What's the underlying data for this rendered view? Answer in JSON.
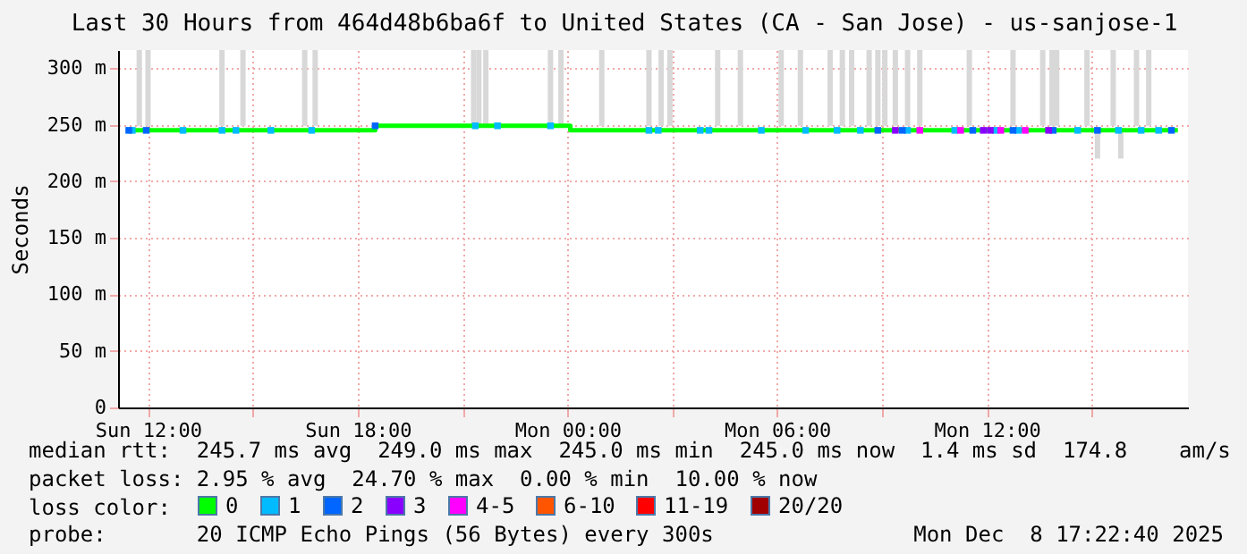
{
  "chart_data": {
    "type": "line",
    "title": "Last 30 Hours from 464d48b6ba6f to United States (CA - San Jose) - us-sanjose-1",
    "ylabel": "Seconds",
    "legend_title": "loss color:",
    "legend": "bottom",
    "grid": true,
    "xlim": [
      "2025-12-07T11:24",
      "2025-12-08T17:30"
    ],
    "xticks": [
      {
        "value": "2025-12-07T12:00",
        "label": "Sun 12:00"
      },
      {
        "value": "2025-12-07T15:00",
        "label": null
      },
      {
        "value": "2025-12-07T18:00",
        "label": "Sun 18:00"
      },
      {
        "value": "2025-12-07T21:00",
        "label": null
      },
      {
        "value": "2025-12-08T00:00",
        "label": "Mon 00:00"
      },
      {
        "value": "2025-12-08T03:00",
        "label": null
      },
      {
        "value": "2025-12-08T06:00",
        "label": "Mon 06:00"
      },
      {
        "value": "2025-12-08T09:00",
        "label": null
      },
      {
        "value": "2025-12-08T12:00",
        "label": "Mon 12:00"
      },
      {
        "value": "2025-12-08T15:00",
        "label": null
      }
    ],
    "ylim": [
      0,
      316
    ],
    "yticks": [
      0,
      {
        "value": 50,
        "label": "50 m"
      },
      {
        "value": 100,
        "label": "100 m"
      },
      {
        "value": 150,
        "label": "150 m"
      },
      {
        "value": 200,
        "label": "200 m"
      },
      {
        "value": 250,
        "label": "250 m"
      },
      {
        "value": 300,
        "label": "300 m"
      }
    ],
    "series": [
      {
        "type": "bar",
        "color": "#d8d8d8",
        "x": [
          "2025-12-07T11:45",
          "2025-12-07T12:00",
          "2025-12-07T14:07",
          "2025-12-07T14:43",
          "2025-12-07T16:29",
          "2025-12-07T16:47",
          "2025-12-07T21:19",
          "2025-12-07T21:28",
          "2025-12-07T21:40",
          "2025-12-07T23:31",
          "2025-12-07T23:49",
          "2025-12-08T00:59",
          "2025-12-08T02:20",
          "2025-12-08T02:41",
          "2025-12-08T02:56",
          "2025-12-08T04:18",
          "2025-12-08T04:57",
          "2025-12-08T06:07",
          "2025-12-08T06:40",
          "2025-12-08T07:31",
          "2025-12-08T07:52",
          "2025-12-08T08:08",
          "2025-12-08T08:38",
          "2025-12-08T08:53",
          "2025-12-08T09:05",
          "2025-12-08T09:23",
          "2025-12-08T09:44",
          "2025-12-08T10:05",
          "2025-12-08T11:30",
          "2025-12-08T12:45",
          "2025-12-08T13:36",
          "2025-12-08T13:52",
          "2025-12-08T14:00",
          "2025-12-08T14:52",
          "2025-12-08T15:10",
          "2025-12-08T15:37",
          "2025-12-08T15:50",
          "2025-12-08T16:17",
          "2025-12-08T16:38"
        ],
        "base": [
          249,
          249,
          249,
          249,
          249,
          249,
          249,
          249,
          249,
          249,
          249,
          249,
          249,
          249,
          249,
          249,
          249,
          249,
          249,
          249,
          249,
          249,
          249,
          249,
          249,
          249,
          249,
          249,
          249,
          249,
          249,
          249,
          249,
          249,
          220,
          249,
          220,
          249,
          249
        ],
        "values": [
          67,
          67,
          67,
          67,
          67,
          67,
          67,
          67,
          67,
          67,
          67,
          67,
          67,
          67,
          67,
          67,
          67,
          67,
          67,
          67,
          67,
          67,
          67,
          67,
          67,
          67,
          67,
          67,
          67,
          67,
          67,
          67,
          67,
          67,
          25,
          67,
          25,
          67,
          67
        ]
      },
      {
        "name": "0",
        "color": "#00ff00",
        "x": [
          "2025-12-07T11:25",
          "2025-12-07T18:30",
          "2025-12-07T18:30",
          "2025-12-08T00:05",
          "2025-12-08T00:05",
          "2025-12-08T17:28"
        ],
        "values": [
          245,
          245,
          249,
          249,
          245,
          245
        ]
      },
      {
        "name": "1",
        "type": "scatter",
        "marker": "square",
        "color": "#00bbff",
        "x": [
          "2025-12-07T11:33",
          "2025-12-07T13:00",
          "2025-12-07T14:07",
          "2025-12-07T14:31",
          "2025-12-07T15:31",
          "2025-12-07T16:41",
          "2025-12-07T21:22",
          "2025-12-07T22:00",
          "2025-12-07T23:31",
          "2025-12-08T02:20",
          "2025-12-08T02:36",
          "2025-12-08T03:48",
          "2025-12-08T04:03",
          "2025-12-08T05:33",
          "2025-12-08T06:49",
          "2025-12-08T07:43",
          "2025-12-08T08:23",
          "2025-12-08T09:44",
          "2025-12-08T11:05",
          "2025-12-08T12:15",
          "2025-12-08T12:54",
          "2025-12-08T13:42",
          "2025-12-08T14:36",
          "2025-12-08T15:46",
          "2025-12-08T16:25",
          "2025-12-08T16:55"
        ],
        "values": [
          245,
          245,
          245,
          245,
          245,
          245,
          249,
          249,
          249,
          245,
          245,
          245,
          245,
          245,
          245,
          245,
          245,
          245,
          245,
          245,
          245,
          null,
          245,
          245,
          245,
          245
        ]
      },
      {
        "name": "2",
        "type": "scatter",
        "marker": "square",
        "color": "#0066ff",
        "x": [
          "2025-12-07T11:27",
          "2025-12-07T11:57",
          "2025-12-07T18:30",
          "2025-12-08T08:53",
          "2025-12-08T09:35",
          "2025-12-08T11:36",
          "2025-12-08T12:45",
          "2025-12-08T13:54",
          "2025-12-08T15:10",
          "2025-12-08T17:17"
        ],
        "values": [
          245,
          245,
          249,
          245,
          245,
          245,
          245,
          245,
          245,
          245
        ]
      },
      {
        "name": "3",
        "type": "scatter",
        "marker": "square",
        "color": "#8a00ff",
        "x": [
          "2025-12-08T09:23",
          "2025-12-08T11:54",
          "2025-12-08T12:06",
          "2025-12-08T13:46"
        ],
        "values": [
          245,
          245,
          245,
          245
        ]
      },
      {
        "name": "4-5",
        "type": "scatter",
        "marker": "square",
        "color": "#ff00ff",
        "x": [
          "2025-12-08T10:05",
          "2025-12-08T11:15",
          "2025-12-08T12:24",
          "2025-12-08T13:06"
        ],
        "values": [
          245,
          245,
          245,
          245
        ]
      },
      {
        "name": "6-10",
        "type": "scatter",
        "marker": "square",
        "color": "#ff5500"
      },
      {
        "name": "11-19",
        "type": "scatter",
        "marker": "square",
        "color": "#ff0000"
      },
      {
        "name": "20/20",
        "type": "scatter",
        "marker": "square",
        "color": "#a00000"
      }
    ],
    "annotations": [
      "median rtt:  245.7 ms avg  249.0 ms max  245.0 ms min  245.0 ms now  1.4 ms sd  174.8    am/s",
      "packet loss: 2.95 % avg  24.70 % max  0.00 % min  10.00 % now",
      "probe:       20 ICMP Echo Pings (56 Bytes) every 300s",
      "Mon Dec  8 17:22:40 2025"
    ]
  }
}
